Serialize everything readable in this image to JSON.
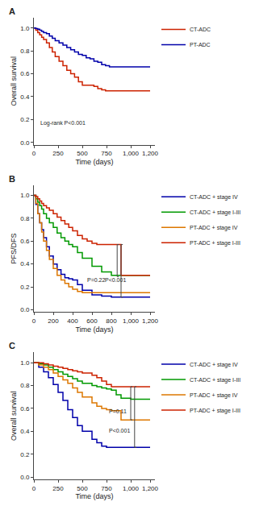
{
  "chart_data": [
    {
      "type": "step",
      "title": "A",
      "xlabel": "Time (days)",
      "ylabel": "Overall survival",
      "xlim": [
        0,
        1250
      ],
      "ylim": [
        -0.02,
        1.09
      ],
      "xticks": [
        0,
        250,
        500,
        750,
        {
          "value": 1000,
          "label": "1,000"
        },
        {
          "value": 1200,
          "label": "1,200"
        }
      ],
      "yticks": [
        {
          "value": 0,
          "label": "0.0"
        },
        0.2,
        0.4,
        0.6,
        0.8,
        {
          "value": 1,
          "label": "1.0"
        }
      ],
      "grid": false,
      "legend": "right",
      "annotations": [
        {
          "text": "Log-rank P<0.001"
        }
      ],
      "series": [
        {
          "name": "CT-ADC",
          "color": "#cc2200",
          "x": [
            0,
            20,
            40,
            60,
            80,
            100,
            130,
            160,
            190,
            220,
            260,
            300,
            340,
            380,
            420,
            460,
            500,
            540,
            580,
            620,
            660,
            700,
            740,
            780,
            820,
            860,
            900,
            1200
          ],
          "values": [
            1.0,
            0.98,
            0.96,
            0.94,
            0.92,
            0.9,
            0.87,
            0.83,
            0.79,
            0.75,
            0.71,
            0.67,
            0.63,
            0.6,
            0.57,
            0.53,
            0.5,
            0.5,
            0.5,
            0.49,
            0.47,
            0.46,
            0.45,
            0.45,
            0.45,
            0.45,
            0.45,
            0.45
          ]
        },
        {
          "name": "PT-ADC",
          "color": "#0000aa",
          "x": [
            0,
            20,
            40,
            60,
            80,
            100,
            130,
            160,
            190,
            220,
            260,
            300,
            340,
            380,
            420,
            460,
            500,
            540,
            580,
            620,
            660,
            700,
            740,
            780,
            820,
            860,
            900,
            1200
          ],
          "values": [
            1.0,
            0.995,
            0.99,
            0.98,
            0.97,
            0.96,
            0.95,
            0.93,
            0.91,
            0.89,
            0.87,
            0.85,
            0.83,
            0.81,
            0.79,
            0.77,
            0.76,
            0.74,
            0.73,
            0.71,
            0.7,
            0.68,
            0.67,
            0.66,
            0.66,
            0.66,
            0.66,
            0.66
          ]
        }
      ]
    },
    {
      "type": "step",
      "title": "B",
      "xlabel": "Time (days)",
      "ylabel": "PFS/DFS",
      "xlim": [
        0,
        1250
      ],
      "ylim": [
        -0.02,
        1.09
      ],
      "xticks": [
        0,
        200,
        400,
        600,
        800,
        {
          "value": 1000,
          "label": "1,000"
        },
        {
          "value": 1200,
          "label": "1,200"
        }
      ],
      "yticks": [
        {
          "value": 0,
          "label": "0.0"
        },
        0.2,
        0.4,
        0.6,
        0.8,
        {
          "value": 1,
          "label": "1.0"
        }
      ],
      "grid": false,
      "legend": "right",
      "annotations": [
        {
          "text": "P=0.22",
          "x": 530,
          "y": 0.22
        },
        {
          "text": "P<0.001",
          "x": 720,
          "y": 0.22
        }
      ],
      "brackets": [
        {
          "x": 860,
          "y1": 0.29,
          "y2": 0.57,
          "length": 18,
          "color": "#444444"
        },
        {
          "x": 900,
          "y1": 0.11,
          "y2": 0.57,
          "length": 18,
          "color": "#444444"
        }
      ],
      "series": [
        {
          "name": "CT-ADC + stage IV",
          "color": "#0000aa",
          "x": [
            0,
            20,
            40,
            60,
            80,
            100,
            130,
            160,
            200,
            240,
            280,
            320,
            360,
            400,
            450,
            500,
            600,
            700,
            800,
            900,
            1200
          ],
          "values": [
            1.0,
            0.92,
            0.84,
            0.76,
            0.7,
            0.63,
            0.55,
            0.47,
            0.4,
            0.35,
            0.31,
            0.28,
            0.27,
            0.26,
            0.22,
            0.17,
            0.13,
            0.12,
            0.11,
            0.11,
            0.11
          ]
        },
        {
          "name": "CT-ADC + stage I-III",
          "color": "#009900",
          "x": [
            0,
            20,
            40,
            60,
            80,
            100,
            130,
            160,
            200,
            240,
            280,
            320,
            360,
            400,
            450,
            500,
            600,
            700,
            800,
            900,
            1200
          ],
          "values": [
            1.0,
            0.97,
            0.94,
            0.91,
            0.88,
            0.84,
            0.8,
            0.76,
            0.72,
            0.67,
            0.63,
            0.6,
            0.57,
            0.55,
            0.5,
            0.45,
            0.38,
            0.33,
            0.3,
            0.3,
            0.3
          ]
        },
        {
          "name": "PT-ADC + stage IV",
          "color": "#dd7700",
          "x": [
            0,
            20,
            40,
            60,
            80,
            100,
            130,
            160,
            200,
            240,
            280,
            320,
            360,
            400,
            450,
            500,
            600,
            700,
            800,
            900,
            1200
          ],
          "values": [
            1.0,
            0.93,
            0.84,
            0.76,
            0.68,
            0.6,
            0.52,
            0.44,
            0.36,
            0.3,
            0.26,
            0.23,
            0.2,
            0.18,
            0.16,
            0.15,
            0.15,
            0.15,
            0.15,
            0.15,
            0.15
          ]
        },
        {
          "name": "PT-ADC + stage I-III",
          "color": "#cc2200",
          "x": [
            0,
            20,
            40,
            60,
            80,
            100,
            130,
            160,
            200,
            240,
            280,
            320,
            360,
            400,
            450,
            500,
            550,
            600,
            650,
            700,
            800,
            870,
            900,
            1200
          ],
          "values": [
            1.0,
            0.99,
            0.97,
            0.95,
            0.93,
            0.91,
            0.89,
            0.87,
            0.84,
            0.81,
            0.78,
            0.75,
            0.72,
            0.69,
            0.65,
            0.62,
            0.6,
            0.58,
            0.57,
            0.57,
            0.57,
            0.57,
            0.3,
            0.3
          ]
        }
      ]
    },
    {
      "type": "step",
      "title": "C",
      "xlabel": "Time (days)",
      "ylabel": "Overall survival",
      "xlim": [
        0,
        1250
      ],
      "ylim": [
        -0.02,
        1.09
      ],
      "xticks": [
        0,
        250,
        500,
        750,
        {
          "value": 1000,
          "label": "1,000"
        },
        {
          "value": 1200,
          "label": "1,200"
        }
      ],
      "yticks": [
        {
          "value": 0,
          "label": "0.0"
        },
        0.2,
        0.4,
        0.6,
        0.8,
        {
          "value": 1,
          "label": "1.0"
        }
      ],
      "grid": false,
      "legend": "right",
      "annotations": [
        {
          "text": "P=0.11",
          "x": 760,
          "y": 0.535
        },
        {
          "text": "P<0.001",
          "x": 760,
          "y": 0.37
        }
      ],
      "brackets": [
        {
          "x": 1000,
          "y1": 0.5,
          "y2": 0.79,
          "length": 18,
          "color": "#444444"
        },
        {
          "x": 1040,
          "y1": 0.26,
          "y2": 0.79,
          "length": 18,
          "color": "#444444"
        }
      ],
      "series": [
        {
          "name": "CT-ADC + stage IV",
          "color": "#0000aa",
          "x": [
            0,
            50,
            100,
            150,
            200,
            250,
            300,
            350,
            400,
            450,
            500,
            600,
            650,
            700,
            750,
            800,
            900,
            1200
          ],
          "values": [
            1.0,
            0.96,
            0.92,
            0.87,
            0.81,
            0.74,
            0.67,
            0.59,
            0.52,
            0.45,
            0.4,
            0.33,
            0.3,
            0.27,
            0.26,
            0.26,
            0.26,
            0.26
          ]
        },
        {
          "name": "CT-ADC + stage I-III",
          "color": "#009900",
          "x": [
            0,
            50,
            100,
            150,
            200,
            250,
            300,
            350,
            400,
            450,
            500,
            600,
            650,
            700,
            750,
            800,
            850,
            900,
            1000,
            1200
          ],
          "values": [
            1.0,
            0.99,
            0.98,
            0.96,
            0.94,
            0.92,
            0.9,
            0.88,
            0.86,
            0.84,
            0.82,
            0.8,
            0.79,
            0.78,
            0.77,
            0.76,
            0.72,
            0.69,
            0.68,
            0.68
          ]
        },
        {
          "name": "PT-ADC + stage IV",
          "color": "#dd7700",
          "x": [
            0,
            50,
            100,
            150,
            200,
            250,
            300,
            350,
            400,
            450,
            500,
            600,
            650,
            700,
            750,
            800,
            900,
            1200
          ],
          "values": [
            1.0,
            0.98,
            0.96,
            0.94,
            0.91,
            0.88,
            0.85,
            0.82,
            0.78,
            0.74,
            0.7,
            0.65,
            0.62,
            0.6,
            0.59,
            0.58,
            0.5,
            0.5
          ]
        },
        {
          "name": "PT-ADC + stage I-III",
          "color": "#cc2200",
          "x": [
            0,
            50,
            100,
            150,
            200,
            250,
            300,
            350,
            400,
            450,
            500,
            600,
            650,
            700,
            750,
            800,
            900,
            1000,
            1200
          ],
          "values": [
            1.0,
            1.0,
            0.99,
            0.98,
            0.97,
            0.96,
            0.95,
            0.94,
            0.93,
            0.92,
            0.91,
            0.89,
            0.87,
            0.84,
            0.81,
            0.79,
            0.79,
            0.79,
            0.79
          ]
        }
      ]
    }
  ]
}
